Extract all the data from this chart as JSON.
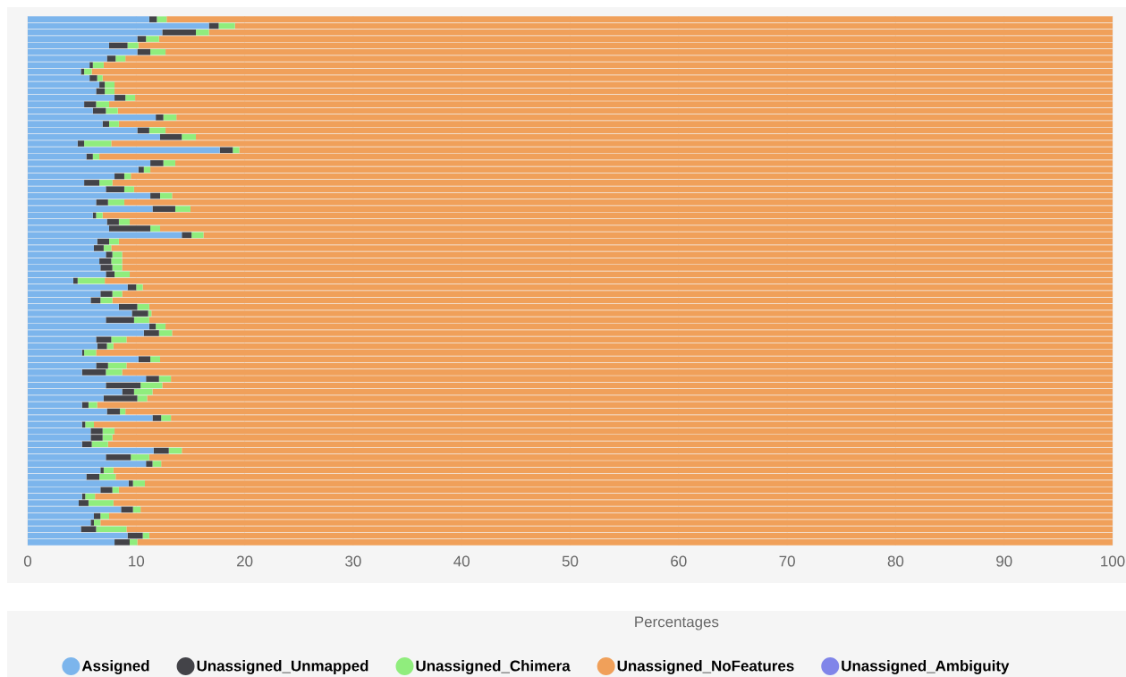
{
  "chart_data": {
    "type": "bar",
    "orientation": "horizontal",
    "stacked": true,
    "xlabel": "Percentages",
    "categories": [
      null,
      null,
      null,
      null,
      null,
      null,
      null,
      null,
      null,
      null,
      null,
      null,
      null,
      null,
      null,
      null,
      null,
      null,
      null,
      null,
      null,
      null,
      null,
      null,
      null,
      null,
      null,
      null,
      null,
      null,
      null,
      null,
      null,
      null,
      null,
      null,
      null,
      null,
      null,
      null,
      null,
      null,
      null,
      null,
      null,
      null,
      null,
      null,
      null,
      null,
      null,
      null,
      null,
      null,
      null,
      null,
      null,
      null,
      null,
      null,
      null,
      null,
      null,
      null,
      null,
      null,
      null,
      null,
      null,
      null,
      null,
      null,
      null,
      null,
      null,
      null,
      null,
      null,
      null,
      null,
      null
    ],
    "series": [
      {
        "name": "Assigned",
        "color": "#7cb5ec",
        "values": [
          11.2,
          16.7,
          12.4,
          10.1,
          7.5,
          10.1,
          7.3,
          5.7,
          4.9,
          5.7,
          6.6,
          6.3,
          8.0,
          5.2,
          6.0,
          11.8,
          6.9,
          10.1,
          12.2,
          4.6,
          17.7,
          5.4,
          11.3,
          10.2,
          8.0,
          5.2,
          7.2,
          11.3,
          6.3,
          11.5,
          6.0,
          7.3,
          7.5,
          14.2,
          6.4,
          6.1,
          7.2,
          6.6,
          6.7,
          7.2,
          4.2,
          9.2,
          6.7,
          5.8,
          8.4,
          9.6,
          7.2,
          11.2,
          10.7,
          6.3,
          6.4,
          5.0,
          10.2,
          6.3,
          5.0,
          10.9,
          7.2,
          8.7,
          7.0,
          5.0,
          7.3,
          11.5,
          5.0,
          5.8,
          5.8,
          5.0,
          11.6,
          7.2,
          10.9,
          6.7,
          5.4,
          9.3,
          6.7,
          5.0,
          4.7,
          8.6,
          6.1,
          5.8,
          4.9,
          9.2,
          8.0
        ]
      },
      {
        "name": "Unassigned_Unmapped",
        "color": "#434348",
        "values": [
          0.7,
          0.9,
          3.1,
          0.8,
          1.7,
          1.2,
          0.8,
          0.3,
          0.3,
          0.7,
          0.5,
          0.8,
          1.0,
          1.1,
          1.2,
          0.7,
          0.6,
          1.1,
          2.0,
          0.6,
          1.2,
          0.6,
          1.2,
          0.5,
          0.9,
          1.4,
          1.7,
          0.9,
          1.1,
          2.1,
          0.3,
          1.1,
          3.8,
          0.9,
          1.1,
          0.9,
          0.6,
          1.1,
          1.1,
          0.8,
          0.4,
          0.8,
          1.1,
          0.9,
          1.7,
          1.5,
          2.6,
          0.6,
          1.4,
          1.4,
          0.9,
          0.2,
          1.1,
          1.1,
          2.2,
          1.2,
          3.2,
          1.1,
          3.1,
          0.6,
          1.2,
          0.8,
          0.3,
          1.1,
          1.1,
          0.9,
          1.4,
          2.3,
          0.6,
          0.3,
          1.2,
          0.4,
          1.1,
          0.3,
          0.9,
          1.1,
          0.6,
          0.3,
          1.4,
          1.4,
          1.4
        ]
      },
      {
        "name": "Unassigned_Chimera",
        "color": "#90ed7d",
        "values": [
          0.9,
          1.5,
          1.2,
          1.2,
          1.0,
          1.4,
          0.9,
          1.0,
          0.7,
          0.5,
          0.9,
          0.9,
          0.9,
          1.2,
          1.1,
          1.2,
          0.9,
          1.5,
          1.3,
          2.5,
          0.6,
          0.6,
          1.1,
          0.6,
          0.6,
          1.2,
          0.9,
          1.1,
          1.5,
          1.4,
          0.6,
          1.0,
          0.9,
          1.1,
          0.9,
          0.7,
          0.9,
          1.0,
          0.9,
          1.4,
          2.5,
          0.6,
          0.9,
          1.1,
          1.1,
          0.3,
          1.4,
          0.9,
          1.2,
          1.4,
          0.6,
          1.1,
          0.9,
          1.7,
          1.5,
          1.1,
          2.0,
          1.7,
          0.9,
          0.8,
          0.5,
          0.9,
          0.8,
          1.1,
          0.9,
          1.5,
          1.2,
          1.7,
          0.8,
          0.9,
          1.5,
          1.1,
          0.6,
          0.9,
          2.3,
          0.7,
          0.8,
          0.6,
          2.8,
          0.6,
          0.7
        ]
      },
      {
        "name": "Unassigned_NoFeatures",
        "color": "#f0a05a",
        "values": [
          87.2,
          80.9,
          83.3,
          87.9,
          89.8,
          87.3,
          91.0,
          93.0,
          94.1,
          93.1,
          92.0,
          92.0,
          90.1,
          92.5,
          91.7,
          86.3,
          91.6,
          87.3,
          84.5,
          92.3,
          80.5,
          93.4,
          86.4,
          88.7,
          90.5,
          92.2,
          90.2,
          86.7,
          91.1,
          85.0,
          93.1,
          90.6,
          87.8,
          83.8,
          91.6,
          92.3,
          91.3,
          91.3,
          91.3,
          90.6,
          92.9,
          89.4,
          91.3,
          92.2,
          88.8,
          88.6,
          88.8,
          87.3,
          86.7,
          90.9,
          92.1,
          93.7,
          87.8,
          90.9,
          91.3,
          86.8,
          87.6,
          88.5,
          89.0,
          93.6,
          91.0,
          86.8,
          93.9,
          92.0,
          92.2,
          92.6,
          85.8,
          88.8,
          87.7,
          92.1,
          91.9,
          89.2,
          91.6,
          93.8,
          92.1,
          89.6,
          92.5,
          93.3,
          90.9,
          88.8,
          89.9
        ]
      },
      {
        "name": "Unassigned_Ambiguity",
        "color": "#8085e9",
        "values": [
          0,
          0,
          0,
          0,
          0,
          0,
          0,
          0,
          0,
          0,
          0,
          0,
          0,
          0,
          0,
          0,
          0,
          0,
          0,
          0,
          0,
          0,
          0,
          0,
          0,
          0,
          0,
          0,
          0,
          0,
          0,
          0,
          0,
          0,
          0,
          0,
          0,
          0,
          0,
          0,
          0,
          0,
          0,
          0,
          0,
          0,
          0,
          0,
          0,
          0,
          0,
          0,
          0,
          0,
          0,
          0,
          0,
          0,
          0,
          0,
          0,
          0,
          0,
          0,
          0,
          0,
          0,
          0,
          0,
          0,
          0,
          0,
          0,
          0,
          0,
          0,
          0,
          0,
          0,
          0,
          0
        ]
      }
    ],
    "xlim": [
      0,
      100
    ],
    "xticks": [
      0,
      10,
      20,
      30,
      40,
      50,
      60,
      70,
      80,
      90,
      100
    ],
    "grid": "x",
    "legend": "bottom",
    "tick_labels": "x"
  }
}
